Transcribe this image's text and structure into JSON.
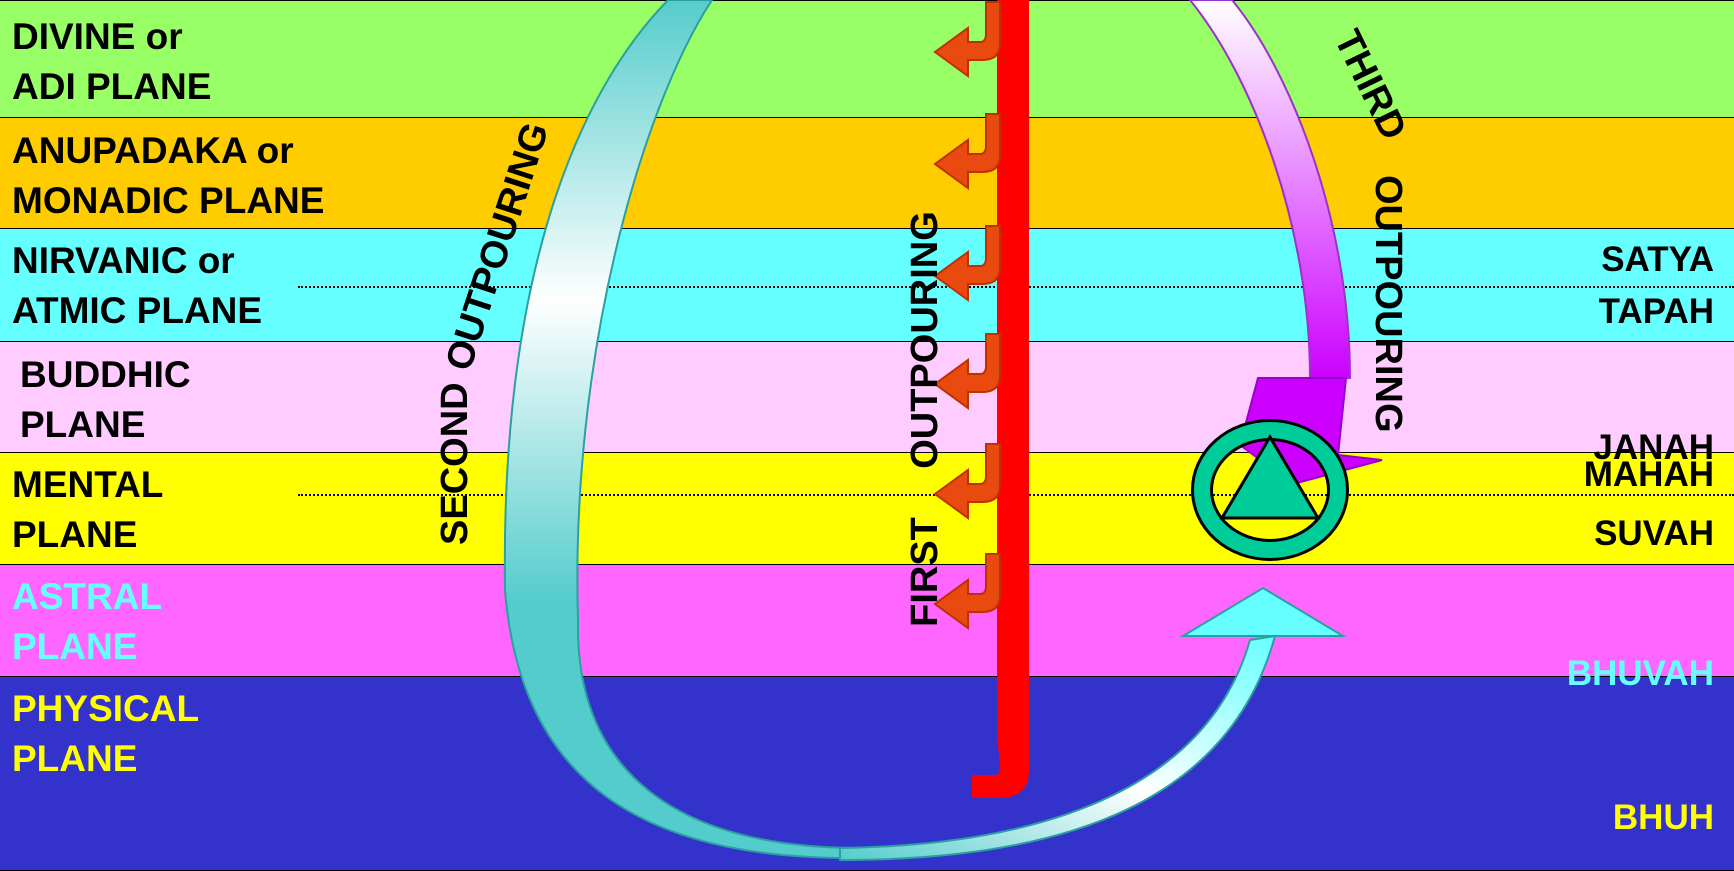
{
  "planes": [
    {
      "line1": "DIVINE or",
      "line2": "ADI PLANE",
      "color": "#99ff66",
      "text_color": "#000000"
    },
    {
      "line1": "ANUPADAKA or",
      "line2": "MONADIC PLANE",
      "color": "#ffcc00",
      "text_color": "#000000"
    },
    {
      "line1": "NIRVANIC or",
      "line2": "ATMIC PLANE",
      "color": "#66ffff",
      "text_color": "#000000"
    },
    {
      "line1": "BUDDHIC",
      "line2": "PLANE",
      "color": "#ffccff",
      "text_color": "#000000"
    },
    {
      "line1": "MENTAL",
      "line2": "PLANE",
      "color": "#ffff00",
      "text_color": "#000000"
    },
    {
      "line1": "ASTRAL",
      "line2": "PLANE",
      "color": "#ff66ff",
      "text_color": "#66ffff"
    },
    {
      "line1": "PHYSICAL",
      "line2": "PLANE",
      "color": "#3333cc",
      "text_color": "#ffff00"
    }
  ],
  "lokas": {
    "satya": "SATYA",
    "tapah": "TAPAH",
    "janah": "JANAH",
    "mahah": "MAHAH",
    "suvah": "SUVAH",
    "bhuvah": "BHUVAH",
    "bhuh": "BHUH"
  },
  "outpourings": {
    "first_a": "FIRST",
    "first_b": "OUTPOURING",
    "second_a": "SECOND",
    "second_b": "OUTPOURING",
    "third_a": "THIRD",
    "third_b": "OUTPOURING"
  },
  "colors": {
    "first_outpouring": "#ff0000",
    "branch_arrow": "#e84a10",
    "second_outpouring_top": "#ffffff",
    "second_outpouring_bottom": "#55cccc",
    "third_outpouring": "#cc00ff",
    "emblem_fill": "#00cc99"
  }
}
